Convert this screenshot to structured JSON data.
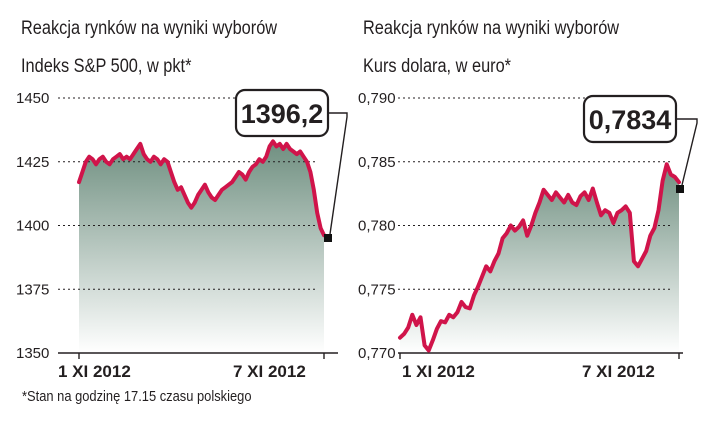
{
  "footnote": "*Stan na godzinę 17.15 czasu polskiego",
  "colors": {
    "line": "#d0144a",
    "area_top": "#6f8f80",
    "area_bottom": "#ffffff",
    "grid": "#231f20"
  },
  "chart_data": [
    {
      "type": "area",
      "title": "Reakcja rynków na wyniki wyborów",
      "subtitle": "Indeks S&P 500, w pkt*",
      "ylim": [
        1350,
        1450
      ],
      "yticks": [
        "1450",
        "1425",
        "1400",
        "1375",
        "1350"
      ],
      "xticks": [
        "1 XI 2012",
        "7 XI 2012"
      ],
      "callout": "1396,2",
      "last_value": 1396.2,
      "series": [
        {
          "values": [
            1417,
            1421,
            1425,
            1427,
            1426,
            1424,
            1426,
            1427,
            1425,
            1424,
            1426,
            1427,
            1428,
            1426,
            1427,
            1426,
            1428,
            1430,
            1432,
            1428,
            1426,
            1425,
            1427,
            1426,
            1424,
            1426,
            1425,
            1421,
            1417,
            1414,
            1415,
            1412,
            1409,
            1407,
            1409,
            1412,
            1414,
            1416,
            1413,
            1411,
            1410,
            1412,
            1414,
            1415,
            1416,
            1417,
            1419,
            1421,
            1420,
            1418,
            1421,
            1423,
            1424,
            1426,
            1425,
            1427,
            1431,
            1433,
            1431,
            1432,
            1430,
            1432,
            1430,
            1429,
            1428,
            1429,
            1427,
            1425,
            1421,
            1414,
            1405,
            1399,
            1396.2
          ]
        }
      ]
    },
    {
      "type": "area",
      "title": "Reakcja rynków na wyniki wyborów",
      "subtitle": "Kurs dolara, w euro*",
      "ylim": [
        0.77,
        0.79
      ],
      "yticks": [
        "0,790",
        "0,785",
        "0,780",
        "0,775",
        "0,770"
      ],
      "xticks": [
        "1 XI 2012",
        "7 XI 2012"
      ],
      "callout": "0,7834",
      "last_value": 0.7834,
      "series": [
        {
          "values": [
            0.7712,
            0.7715,
            0.772,
            0.773,
            0.7722,
            0.7728,
            0.7706,
            0.7702,
            0.771,
            0.7719,
            0.7725,
            0.7724,
            0.773,
            0.7728,
            0.7732,
            0.774,
            0.7736,
            0.7735,
            0.7745,
            0.7752,
            0.776,
            0.7768,
            0.7764,
            0.7772,
            0.7778,
            0.779,
            0.7794,
            0.78,
            0.7796,
            0.7799,
            0.7804,
            0.7792,
            0.78,
            0.781,
            0.7818,
            0.7828,
            0.7824,
            0.782,
            0.7826,
            0.7822,
            0.7818,
            0.7824,
            0.7818,
            0.7816,
            0.7823,
            0.7826,
            0.782,
            0.7829,
            0.7818,
            0.7808,
            0.7812,
            0.781,
            0.7802,
            0.781,
            0.7812,
            0.7815,
            0.781,
            0.7772,
            0.7768,
            0.7774,
            0.778,
            0.7792,
            0.7798,
            0.7812,
            0.7835,
            0.7848,
            0.784,
            0.7838,
            0.7834
          ]
        }
      ]
    }
  ]
}
